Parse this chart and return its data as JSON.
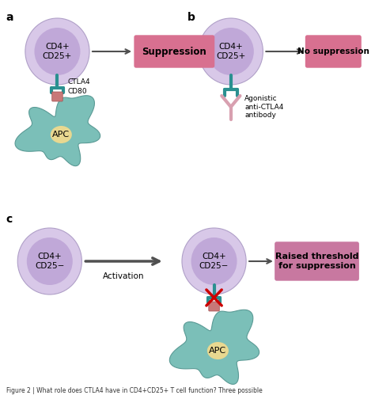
{
  "bg_color": "#ffffff",
  "cell_outer_color": "#d8c8e8",
  "cell_inner_color": "#c0a8d8",
  "apc_color": "#7bbfb8",
  "apc_nucleus_color": "#e8d890",
  "ctla4_color": "#2a9090",
  "cd80_color": "#c87878",
  "box_suppression_color": "#d87090",
  "box_no_suppression_color": "#d87090",
  "box_raised_color": "#c878a0",
  "antibody_color": "#d8a0b0",
  "arrow_color": "#505050",
  "label_a": "a",
  "label_b": "b",
  "label_c": "c",
  "cell_text_pos": "CD4+\nCD25+",
  "cell_text_neg": "CD4+\nCD25−",
  "suppression_text": "Suppression",
  "no_suppression_text": "No suppression",
  "raised_text": "Raised threshold\nfor suppression",
  "ctla4_label": "CTLA4",
  "cd80_label": "CD80",
  "apc_label": "APC",
  "antibody_label": "Agonistic\nanti-CTLA4\nantibody",
  "activation_label": "Activation",
  "caption": "Figure 2 | What role does CTLA4 have in CD4+CD25+ T cell function? Three possible"
}
